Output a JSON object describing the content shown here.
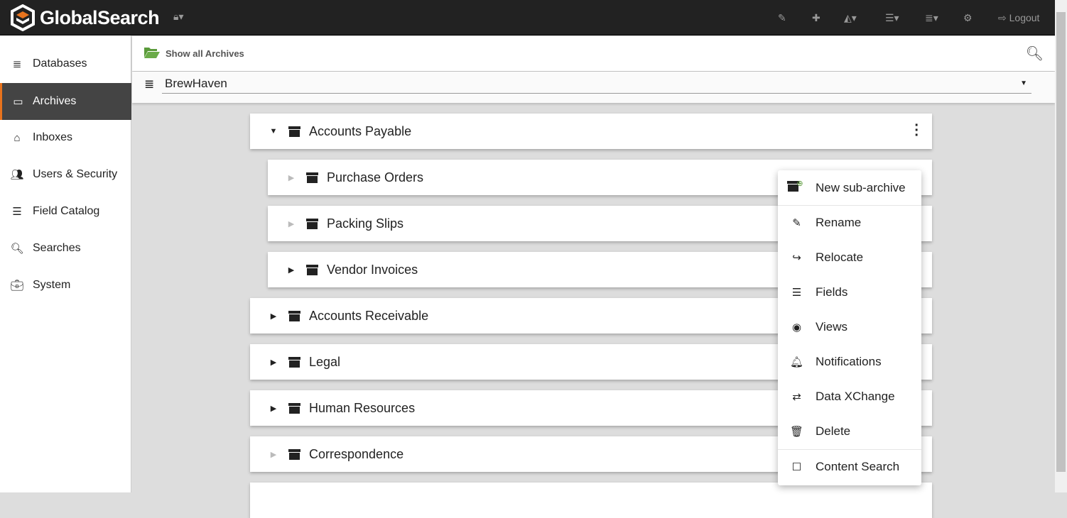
{
  "app": {
    "title": "GlobalSearch",
    "brand_color": "#e8731d"
  },
  "topbar": {
    "lock_icon": "lock-icon",
    "logout_label": "Logout",
    "icons": [
      "edit-icon",
      "puzzle-icon",
      "chart-icon",
      "list-icon",
      "database-icon",
      "cogs-icon"
    ]
  },
  "sidebar": {
    "items": [
      {
        "label": "Databases",
        "icon": "database-icon"
      },
      {
        "label": "Archives",
        "icon": "archive-icon",
        "active": true
      },
      {
        "label": "Inboxes",
        "icon": "inbox-icon"
      },
      {
        "label": "Users & Security",
        "icon": "users-icon"
      },
      {
        "label": "Field Catalog",
        "icon": "list-icon"
      },
      {
        "label": "Searches",
        "icon": "search-icon"
      },
      {
        "label": "System",
        "icon": "briefcase-icon"
      }
    ]
  },
  "header": {
    "show_all_label": "Show all Archives"
  },
  "database_select": {
    "value": "BrewHaven"
  },
  "archives": [
    {
      "label": "Accounts Payable",
      "expanded": true,
      "level": 0
    },
    {
      "label": "Purchase Orders",
      "level": 1,
      "has_children": false
    },
    {
      "label": "Packing Slips",
      "level": 1,
      "has_children": false
    },
    {
      "label": "Vendor Invoices",
      "level": 1,
      "has_children": true
    },
    {
      "label": "Accounts Receivable",
      "level": 0,
      "has_children": true
    },
    {
      "label": "Legal",
      "level": 0,
      "has_children": true
    },
    {
      "label": "Human Resources",
      "level": 0,
      "has_children": true
    },
    {
      "label": "Correspondence",
      "level": 0,
      "has_children": false
    }
  ],
  "context_menu": {
    "items": [
      "New sub-archive",
      "Rename",
      "Relocate",
      "Fields",
      "Views",
      "Notifications",
      "Data XChange",
      "Delete",
      "Content Search"
    ]
  }
}
